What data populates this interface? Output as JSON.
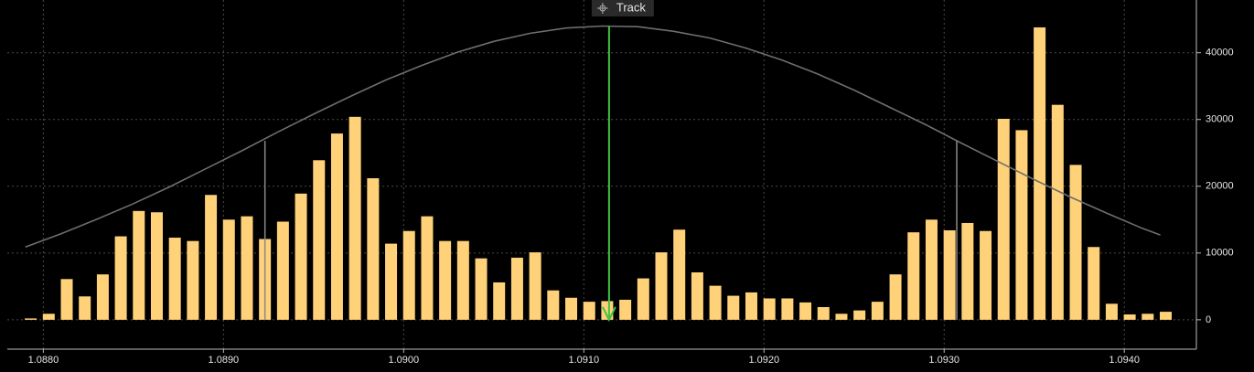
{
  "chart_data": {
    "type": "bar",
    "color": "#ffd27a",
    "xlim": [
      1.0878,
      1.0944
    ],
    "ylim": [
      -4400,
      47900
    ],
    "grid": true,
    "xticks": [
      {
        "value": 1.088,
        "label": "1.0880"
      },
      {
        "value": 1.089,
        "label": "1.0890"
      },
      {
        "value": 1.09,
        "label": "1.0900"
      },
      {
        "value": 1.091,
        "label": "1.0910"
      },
      {
        "value": 1.092,
        "label": "1.0920"
      },
      {
        "value": 1.093,
        "label": "1.0930"
      },
      {
        "value": 1.094,
        "label": "1.0940"
      }
    ],
    "yticks": [
      0,
      10000,
      20000,
      30000,
      40000
    ],
    "x": [
      1.08793,
      1.08803,
      1.08813,
      1.08823,
      1.08833,
      1.08843,
      1.08853,
      1.08863,
      1.08873,
      1.08883,
      1.08893,
      1.08903,
      1.08913,
      1.08923,
      1.08933,
      1.08943,
      1.08953,
      1.08963,
      1.08973,
      1.08983,
      1.08993,
      1.09003,
      1.09013,
      1.09023,
      1.09033,
      1.09043,
      1.09053,
      1.09063,
      1.09073,
      1.09083,
      1.09093,
      1.09103,
      1.09113,
      1.09123,
      1.09133,
      1.09143,
      1.09153,
      1.09163,
      1.09173,
      1.09183,
      1.09193,
      1.09203,
      1.09213,
      1.09223,
      1.09233,
      1.09243,
      1.09253,
      1.09263,
      1.09273,
      1.09283,
      1.09293,
      1.09303,
      1.09313,
      1.09323,
      1.09333,
      1.09343,
      1.09353,
      1.09363,
      1.09373,
      1.09383,
      1.09393,
      1.09403,
      1.09413,
      1.09423
    ],
    "values": [
      200,
      900,
      6100,
      3500,
      6800,
      12500,
      16300,
      16100,
      12300,
      11800,
      18700,
      15000,
      15500,
      12100,
      14700,
      18900,
      23900,
      27900,
      30400,
      21200,
      11400,
      13300,
      15500,
      11800,
      11800,
      9200,
      5600,
      9300,
      10100,
      4400,
      3300,
      2700,
      2800,
      3000,
      6200,
      10100,
      13500,
      7100,
      5100,
      3600,
      4100,
      3200,
      3200,
      2600,
      1900,
      900,
      1400,
      2700,
      6800,
      13100,
      15000,
      13400,
      14500,
      13300,
      30100,
      28400,
      43800,
      32200,
      23200,
      10900,
      2400,
      800,
      900,
      1200
    ],
    "curve": {
      "type": "line",
      "color": "#6e6e6e",
      "x": [
        1.0879,
        1.0881,
        1.0883,
        1.0885,
        1.0887,
        1.0889,
        1.0891,
        1.0893,
        1.0895,
        1.0897,
        1.0899,
        1.0901,
        1.0903,
        1.0905,
        1.0907,
        1.0909,
        1.0911,
        1.0913,
        1.0915,
        1.0917,
        1.0919,
        1.0921,
        1.0923,
        1.0925,
        1.0927,
        1.0929,
        1.0931,
        1.0933,
        1.0935,
        1.0937,
        1.0939,
        1.0941,
        1.0942
      ],
      "values": [
        10900,
        12900,
        15100,
        17400,
        19900,
        22600,
        25300,
        28100,
        30800,
        33400,
        35900,
        38100,
        40100,
        41700,
        42900,
        43700,
        44000,
        43900,
        43200,
        42200,
        40700,
        38900,
        36800,
        34400,
        31800,
        29200,
        26400,
        23700,
        21000,
        18400,
        16000,
        13700,
        12700
      ]
    },
    "markers": [
      {
        "x": 1.08923,
        "value": 26800,
        "color": "#8a8a8a"
      },
      {
        "x": 1.09307,
        "value": 26800,
        "color": "#8a8a8a"
      }
    ],
    "track": {
      "label": "Track",
      "x": 1.09114,
      "value": 44000,
      "color": "#3fc43f"
    }
  }
}
